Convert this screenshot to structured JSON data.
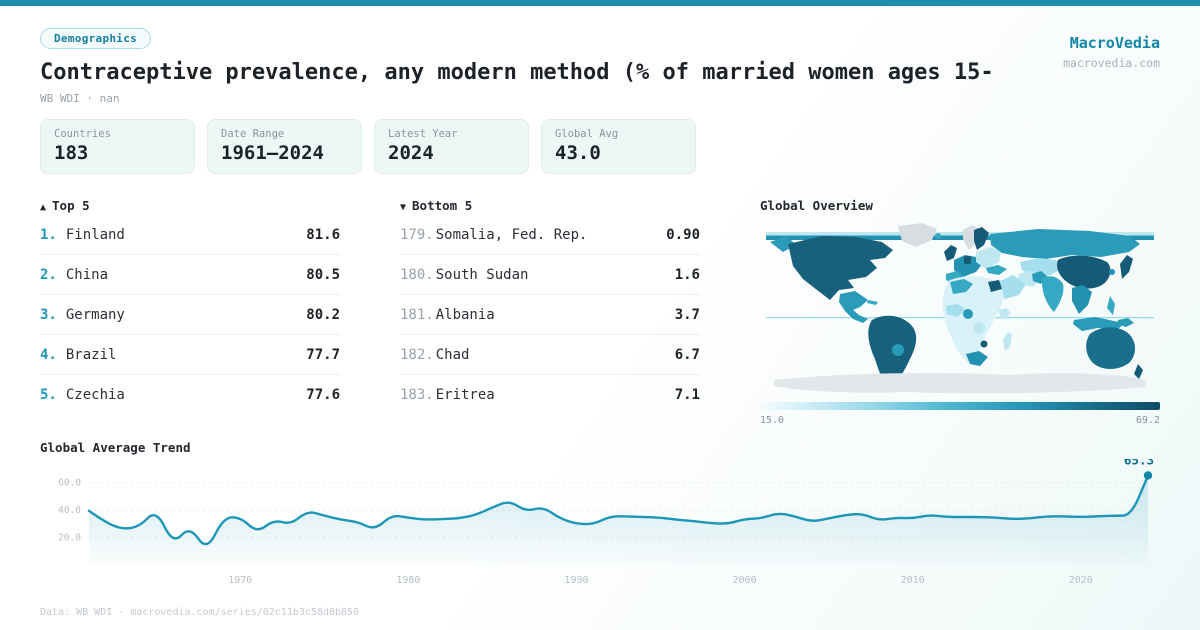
{
  "brand": {
    "name": "MacroVedia",
    "domain": "macrovedia.com"
  },
  "header": {
    "badge": "Demographics",
    "title": "Contraceptive prevalence, any modern method (% of married women ages 15-",
    "subtitle": "WB WDI · nan"
  },
  "stats": [
    {
      "label": "Countries",
      "value": "183"
    },
    {
      "label": "Date Range",
      "value": "1961—2024"
    },
    {
      "label": "Latest Year",
      "value": "2024"
    },
    {
      "label": "Global Avg",
      "value": "43.0"
    }
  ],
  "top5": {
    "marker": "▲",
    "title": "Top 5",
    "rows": [
      {
        "rank": "1.",
        "country": "Finland",
        "value": "81.6"
      },
      {
        "rank": "2.",
        "country": "China",
        "value": "80.5"
      },
      {
        "rank": "3.",
        "country": "Germany",
        "value": "80.2"
      },
      {
        "rank": "4.",
        "country": "Brazil",
        "value": "77.7"
      },
      {
        "rank": "5.",
        "country": "Czechia",
        "value": "77.6"
      }
    ]
  },
  "bottom5": {
    "marker": "▼",
    "title": "Bottom 5",
    "rows": [
      {
        "rank": "179.",
        "country": "Somalia, Fed. Rep.",
        "value": "0.90"
      },
      {
        "rank": "180.",
        "country": "South Sudan",
        "value": "1.6"
      },
      {
        "rank": "181.",
        "country": "Albania",
        "value": "3.7"
      },
      {
        "rank": "182.",
        "country": "Chad",
        "value": "6.7"
      },
      {
        "rank": "183.",
        "country": "Eritrea",
        "value": "7.1"
      }
    ]
  },
  "map": {
    "title": "Global Overview",
    "legend_min_label": "15.0",
    "legend_max_label": "69.2"
  },
  "trend": {
    "title": "Global Average Trend"
  },
  "footer": {
    "text": "Data: WB WDI · macrovedia.com/series/02c11b3c58d8b850"
  },
  "colors": {
    "accent": "#1b8fad",
    "line": "#1e96b8",
    "end_label": "#0d6d8f",
    "dark_text": "#1d2228",
    "muted_text": "#8d959c",
    "map_min": "#f4fbfd",
    "map_max": "#0f4c66"
  },
  "chart_data": [
    {
      "type": "line",
      "title": "Global Average Trend",
      "x": [
        1961,
        1962,
        1963,
        1964,
        1965,
        1966,
        1967,
        1968,
        1969,
        1970,
        1971,
        1972,
        1973,
        1974,
        1975,
        1976,
        1977,
        1978,
        1979,
        1980,
        1981,
        1982,
        1983,
        1984,
        1985,
        1986,
        1987,
        1988,
        1989,
        1990,
        1991,
        1992,
        1993,
        1994,
        1995,
        1996,
        1997,
        1998,
        1999,
        2000,
        2001,
        2002,
        2003,
        2004,
        2005,
        2006,
        2007,
        2008,
        2009,
        2010,
        2011,
        2012,
        2013,
        2014,
        2015,
        2016,
        2017,
        2018,
        2019,
        2020,
        2021,
        2022,
        2023,
        2024
      ],
      "values": [
        39.5,
        31,
        26,
        28,
        40.5,
        15,
        28.5,
        10,
        34.5,
        35,
        23.5,
        33,
        29.5,
        39.5,
        36,
        33,
        31.5,
        25.5,
        36.5,
        34.5,
        33,
        33.5,
        34,
        36.5,
        42,
        47,
        39,
        42.5,
        34,
        30,
        29.7,
        35.5,
        35.5,
        35,
        34.5,
        33,
        32,
        30.5,
        30,
        33.5,
        34,
        38,
        35.5,
        31.5,
        34,
        36.5,
        37.5,
        32.5,
        34.5,
        34,
        36.5,
        35,
        35,
        35,
        34.5,
        33.5,
        34,
        35.5,
        35.5,
        35,
        35.5,
        36,
        36,
        65.3
      ],
      "end_value": 65.3,
      "end_label": "65.3",
      "xticks": [
        1970,
        1980,
        1990,
        2000,
        2010,
        2020
      ],
      "yticks": [
        20,
        40,
        60
      ],
      "ytick_labels": [
        "20.0",
        "40.0",
        "60.0"
      ],
      "ylim": [
        0,
        70
      ],
      "grid": "dashed-horizontal",
      "legend": "none"
    },
    {
      "type": "heatmap",
      "subtype": "world-choropleth",
      "title": "Global Overview",
      "colorbar": {
        "min": 15.0,
        "max": 69.2,
        "min_label": "15.0",
        "max_label": "69.2"
      }
    }
  ]
}
